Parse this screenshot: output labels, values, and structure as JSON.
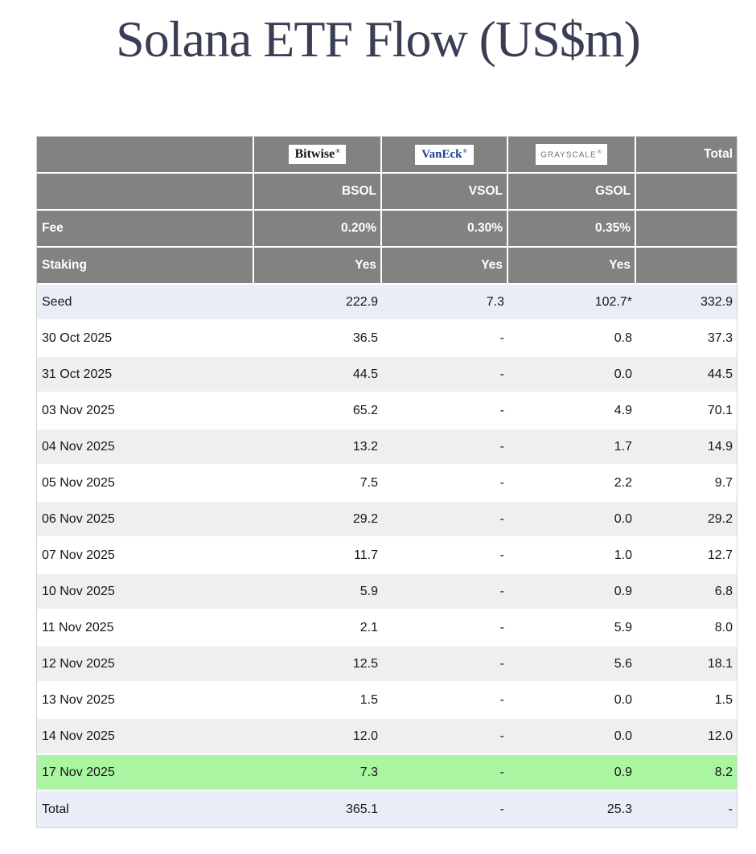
{
  "page": {
    "title": "Solana ETF Flow (US$m)"
  },
  "table": {
    "corner_label": "",
    "total_header": "Total",
    "fee_label": "Fee",
    "staking_label": "Staking",
    "registered_mark": "®",
    "issuers": [
      {
        "brand": "Bitwise",
        "ticker": "BSOL",
        "fee": "0.20%",
        "staking": "Yes"
      },
      {
        "brand": "VanEck",
        "ticker": "VSOL",
        "fee": "0.30%",
        "staking": "Yes"
      },
      {
        "brand": "GRAYSCALE",
        "ticker": "GSOL",
        "fee": "0.35%",
        "staking": "Yes"
      }
    ],
    "rows": [
      {
        "label": "Seed",
        "values": [
          "222.9",
          "7.3",
          "102.7*",
          "332.9"
        ],
        "highlight": "seed"
      },
      {
        "label": "30 Oct 2025",
        "values": [
          "36.5",
          "-",
          "0.8",
          "37.3"
        ]
      },
      {
        "label": "31 Oct 2025",
        "values": [
          "44.5",
          "-",
          "0.0",
          "44.5"
        ]
      },
      {
        "label": "03 Nov 2025",
        "values": [
          "65.2",
          "-",
          "4.9",
          "70.1"
        ]
      },
      {
        "label": "04 Nov 2025",
        "values": [
          "13.2",
          "-",
          "1.7",
          "14.9"
        ]
      },
      {
        "label": "05 Nov 2025",
        "values": [
          "7.5",
          "-",
          "2.2",
          "9.7"
        ]
      },
      {
        "label": "06 Nov 2025",
        "values": [
          "29.2",
          "-",
          "0.0",
          "29.2"
        ]
      },
      {
        "label": "07 Nov 2025",
        "values": [
          "11.7",
          "-",
          "1.0",
          "12.7"
        ]
      },
      {
        "label": "10 Nov 2025",
        "values": [
          "5.9",
          "-",
          "0.9",
          "6.8"
        ]
      },
      {
        "label": "11 Nov 2025",
        "values": [
          "2.1",
          "-",
          "5.9",
          "8.0"
        ]
      },
      {
        "label": "12 Nov 2025",
        "values": [
          "12.5",
          "-",
          "5.6",
          "18.1"
        ]
      },
      {
        "label": "13 Nov 2025",
        "values": [
          "1.5",
          "-",
          "0.0",
          "1.5"
        ]
      },
      {
        "label": "14 Nov 2025",
        "values": [
          "12.0",
          "-",
          "0.0",
          "12.0"
        ]
      },
      {
        "label": "17 Nov 2025",
        "values": [
          "7.3",
          "-",
          "0.9",
          "8.2"
        ],
        "highlight": "latest"
      },
      {
        "label": "Total",
        "values": [
          "365.1",
          "-",
          "25.3",
          "-"
        ],
        "highlight": "total"
      }
    ]
  },
  "colors": {
    "title_color": "#3a3e54",
    "header_bg": "#828282",
    "row_alt_bg": "#efefef",
    "seed_total_bg": "#e9edf8",
    "latest_bg": "#a9f5a1",
    "vaneck_blue": "#1f3d99",
    "grayscale_gray": "#72727a"
  },
  "chart_data": {
    "type": "table",
    "title": "Solana ETF Flow (US$m)",
    "columns": [
      "",
      "BSOL (Bitwise)",
      "VSOL (VanEck)",
      "GSOL (Grayscale)",
      "Total"
    ],
    "meta_rows": [
      [
        "Fee",
        "0.20%",
        "0.30%",
        "0.35%",
        ""
      ],
      [
        "Staking",
        "Yes",
        "Yes",
        "Yes",
        ""
      ]
    ],
    "data_rows": [
      [
        "Seed",
        "222.9",
        "7.3",
        "102.7*",
        "332.9"
      ],
      [
        "30 Oct 2025",
        "36.5",
        "-",
        "0.8",
        "37.3"
      ],
      [
        "31 Oct 2025",
        "44.5",
        "-",
        "0.0",
        "44.5"
      ],
      [
        "03 Nov 2025",
        "65.2",
        "-",
        "4.9",
        "70.1"
      ],
      [
        "04 Nov 2025",
        "13.2",
        "-",
        "1.7",
        "14.9"
      ],
      [
        "05 Nov 2025",
        "7.5",
        "-",
        "2.2",
        "9.7"
      ],
      [
        "06 Nov 2025",
        "29.2",
        "-",
        "0.0",
        "29.2"
      ],
      [
        "07 Nov 2025",
        "11.7",
        "-",
        "1.0",
        "12.7"
      ],
      [
        "10 Nov 2025",
        "5.9",
        "-",
        "0.9",
        "6.8"
      ],
      [
        "11 Nov 2025",
        "2.1",
        "-",
        "5.9",
        "8.0"
      ],
      [
        "12 Nov 2025",
        "12.5",
        "-",
        "5.6",
        "18.1"
      ],
      [
        "13 Nov 2025",
        "1.5",
        "-",
        "0.0",
        "1.5"
      ],
      [
        "14 Nov 2025",
        "12.0",
        "-",
        "0.0",
        "12.0"
      ],
      [
        "17 Nov 2025",
        "7.3",
        "-",
        "0.9",
        "8.2"
      ],
      [
        "Total",
        "365.1",
        "-",
        "25.3",
        "-"
      ]
    ],
    "highlighted_row": "17 Nov 2025",
    "notes": "Seed GSOL value carries an asterisk footnote marker; dashes indicate no flow reported."
  }
}
